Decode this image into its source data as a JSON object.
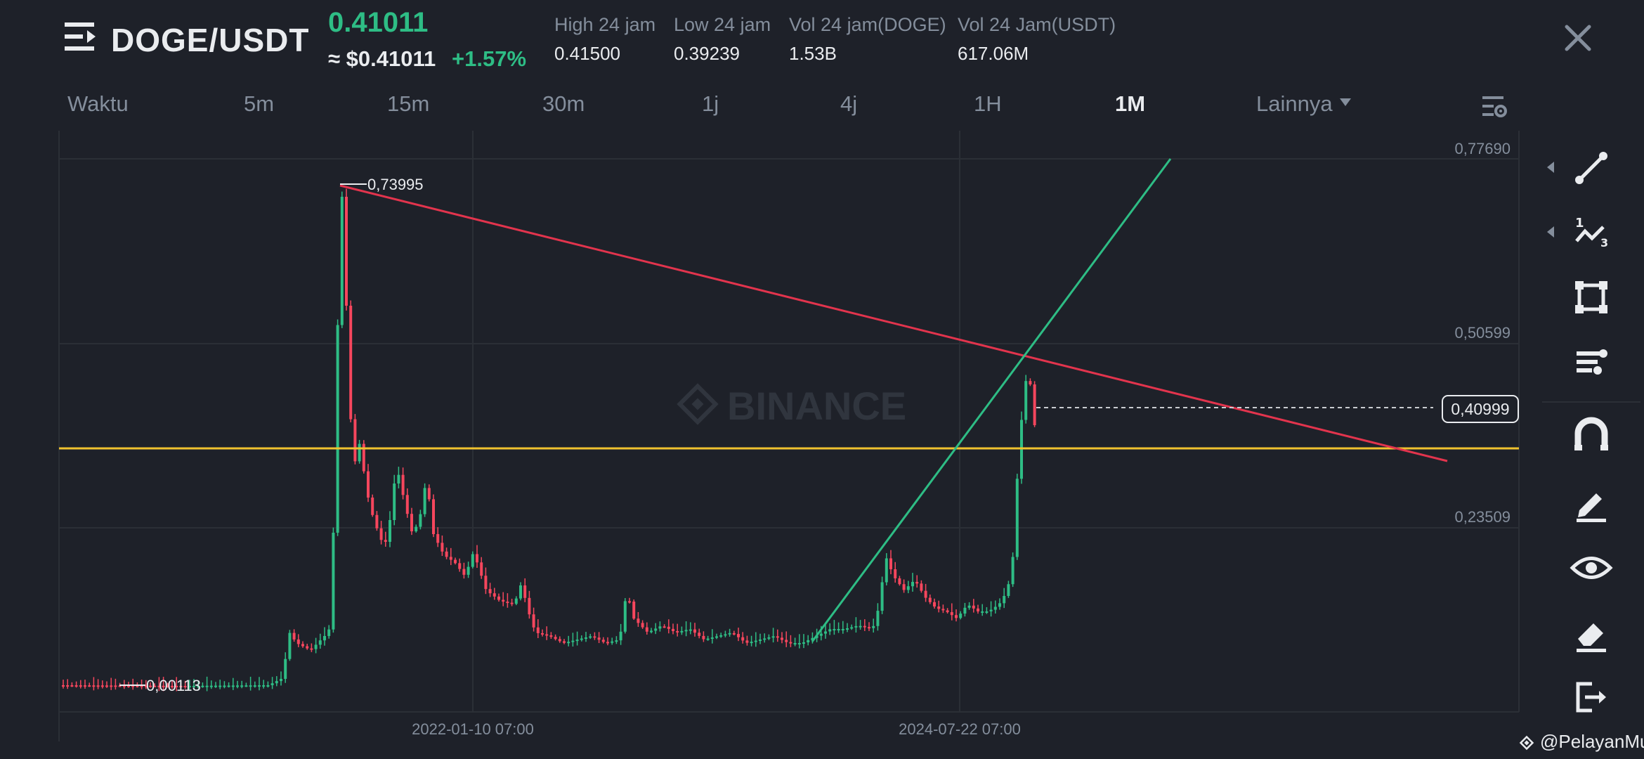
{
  "header": {
    "pair": "DOGE/USDT",
    "last_price": "0.41011",
    "usd_price": "≈ $0.41011",
    "change_pct": "+1.57%",
    "stats": [
      {
        "label": "High 24 jam",
        "value": "0.41500"
      },
      {
        "label": "Low 24 jam",
        "value": "0.39239"
      },
      {
        "label": "Vol 24 jam(DOGE)",
        "value": "1.53B"
      },
      {
        "label": "Vol 24 Jam(USDT)",
        "value": "617.06M"
      }
    ]
  },
  "tabs": [
    {
      "label": "Waktu",
      "active": false
    },
    {
      "label": "5m",
      "active": false
    },
    {
      "label": "15m",
      "active": false
    },
    {
      "label": "30m",
      "active": false
    },
    {
      "label": "1j",
      "active": false
    },
    {
      "label": "4j",
      "active": false
    },
    {
      "label": "1H",
      "active": false
    },
    {
      "label": "1M",
      "active": true
    },
    {
      "label": "Lainnya",
      "active": false
    }
  ],
  "chart": {
    "watermark": "BINANCE",
    "price_labels": [
      "0,77690",
      "0,50599",
      "0,23509"
    ],
    "current_price_label": "0,40999",
    "high_label": "0,73995",
    "low_label": "0,00113",
    "date_labels": [
      "2022-01-10 07:00",
      "2024-07-22 07:00"
    ]
  },
  "chart_data": {
    "type": "candlestick",
    "interval": "1M",
    "y_ticks": [
      0.7769,
      0.50599,
      0.23509
    ],
    "current_price": 0.40999,
    "marked_high": 0.73995,
    "marked_low": 0.00113,
    "x_ticks": [
      "2022-01-10 07:00",
      "2024-07-22 07:00"
    ],
    "drawings": [
      {
        "type": "trendline",
        "color": "#e2344d"
      },
      {
        "type": "trendline",
        "color": "#2ebd85"
      },
      {
        "type": "horizontal_line",
        "color": "#f0c22e"
      }
    ],
    "colors": {
      "up": "#2ebd85",
      "down": "#f6465d",
      "background": "#1e2129"
    }
  },
  "toolbar": {
    "tools": [
      {
        "name": "trend-line-tool-icon"
      },
      {
        "name": "fibonacci-tool-icon"
      },
      {
        "name": "shape-tool-icon"
      },
      {
        "name": "position-tool-icon"
      },
      {
        "name": "magnet-icon"
      },
      {
        "name": "draw-pencil-icon"
      },
      {
        "name": "visibility-eye-icon"
      },
      {
        "name": "eraser-icon"
      },
      {
        "name": "exit-icon"
      }
    ]
  },
  "credit": "@PelayanMu"
}
